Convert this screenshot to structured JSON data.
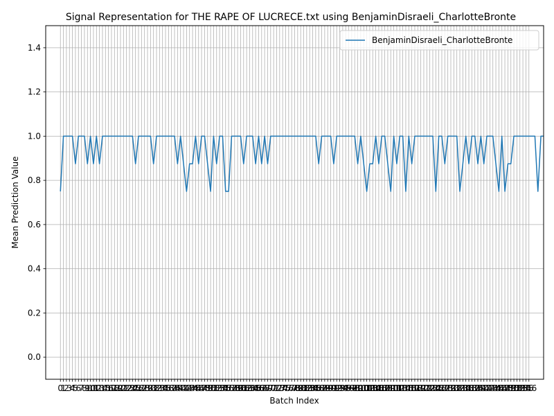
{
  "chart_data": {
    "type": "line",
    "title": "Signal Representation for THE RAPE OF LUCRECE.txt using BenjaminDisraeli_CharlotteBronte",
    "xlabel": "Batch Index",
    "ylabel": "Mean Prediction Value",
    "xlim": [
      -4.9,
      160.9
    ],
    "ylim": [
      -0.1,
      1.5
    ],
    "yticks": [
      0.0,
      0.2,
      0.4,
      0.6,
      0.8,
      1.0,
      1.2,
      1.4
    ],
    "ytick_labels": [
      "0.0",
      "0.2",
      "0.4",
      "0.6",
      "0.8",
      "1.0",
      "1.2",
      "1.4"
    ],
    "x_tick_count": 157,
    "grid": true,
    "legend_position": "top-right",
    "series": [
      {
        "name": "BenjaminDisraeli_CharlotteBronte",
        "color": "#1f77b4",
        "values": [
          0.75,
          1,
          1,
          1,
          1,
          0.875,
          1,
          1,
          1,
          0.875,
          1,
          0.875,
          1,
          0.875,
          1,
          1,
          1,
          1,
          1,
          1,
          1,
          1,
          1,
          1,
          1,
          0.875,
          1,
          1,
          1,
          1,
          1,
          0.875,
          1,
          1,
          1,
          1,
          1,
          1,
          1,
          0.875,
          1,
          0.875,
          0.75,
          0.875,
          0.875,
          1,
          0.875,
          1,
          1,
          0.875,
          0.75,
          1,
          0.875,
          1,
          1,
          0.75,
          0.75,
          1,
          1,
          1,
          1,
          0.875,
          1,
          1,
          1,
          0.875,
          1,
          0.875,
          1,
          0.875,
          1,
          1,
          1,
          1,
          1,
          1,
          1,
          1,
          1,
          1,
          1,
          1,
          1,
          1,
          1,
          1,
          0.875,
          1,
          1,
          1,
          1,
          0.875,
          1,
          1,
          1,
          1,
          1,
          1,
          1,
          0.875,
          1,
          0.875,
          0.75,
          0.875,
          0.875,
          1,
          0.875,
          1,
          1,
          0.875,
          0.75,
          1,
          0.875,
          1,
          1,
          0.75,
          1,
          0.875,
          1,
          1,
          1,
          1,
          1,
          1,
          1,
          0.75,
          1,
          1,
          0.875,
          1,
          1,
          1,
          1,
          0.75,
          0.875,
          1,
          0.875,
          1,
          1,
          0.875,
          1,
          0.875,
          1,
          1,
          1,
          0.875,
          0.75,
          1,
          0.75,
          0.875,
          0.875,
          1,
          1,
          1,
          1,
          1,
          1,
          1,
          1,
          0.75,
          1,
          1
        ]
      }
    ]
  }
}
